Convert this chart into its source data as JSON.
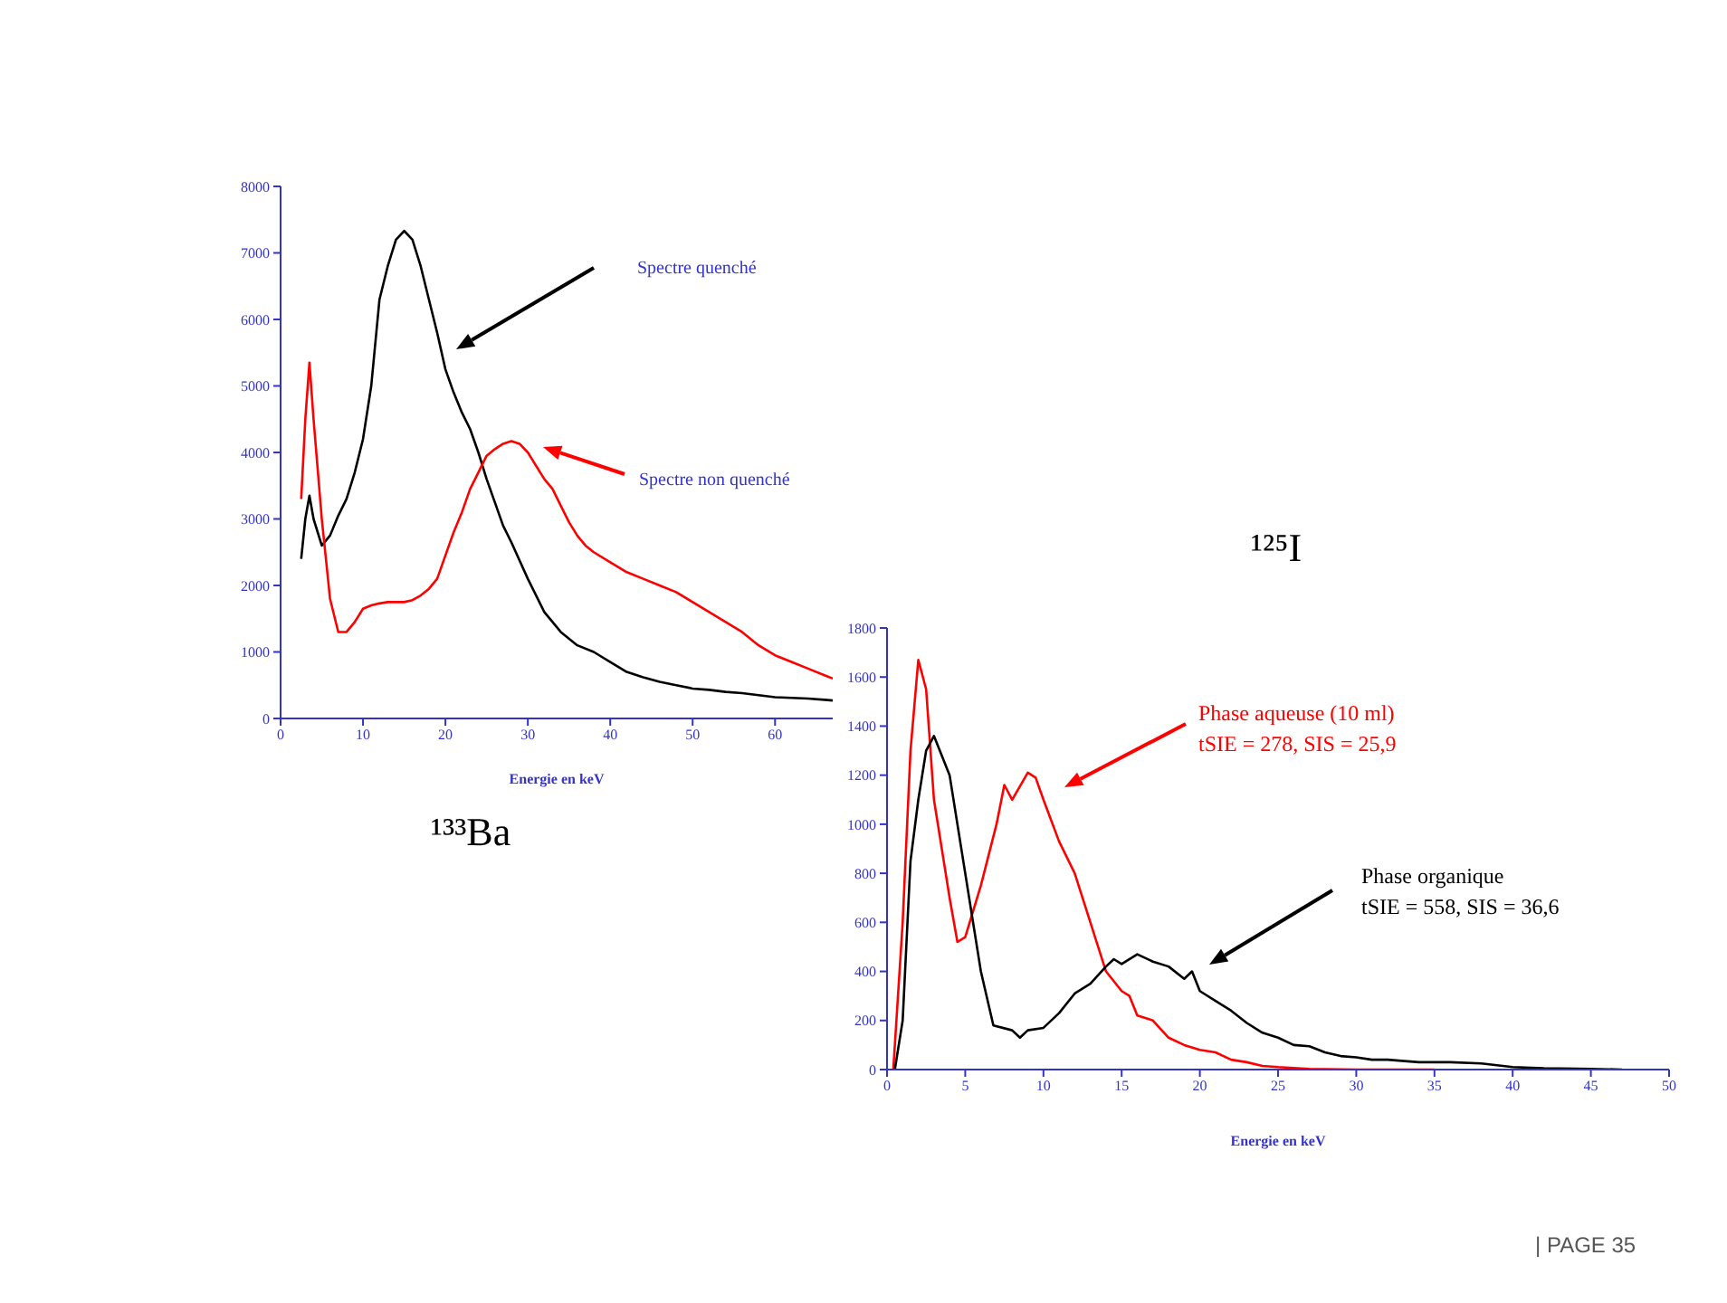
{
  "chart_data": [
    {
      "type": "line",
      "title": "¹³³Ba",
      "xlabel": "Energie en keV",
      "xlim": [
        0,
        67
      ],
      "xticks": [
        0,
        10,
        20,
        30,
        40,
        50,
        60
      ],
      "ylim": [
        0,
        8000
      ],
      "yticks": [
        0,
        1000,
        2000,
        3000,
        4000,
        5000,
        6000,
        7000,
        8000
      ],
      "grid": false,
      "legend": false,
      "marker": "none",
      "line_style": "solid",
      "series": [
        {
          "color": "#000000",
          "x": [
            2.5,
            3,
            3.5,
            4,
            5,
            6,
            7,
            8,
            9,
            10,
            11,
            12,
            13,
            14,
            15,
            16,
            17,
            18,
            19,
            20,
            21,
            22,
            23,
            24,
            25,
            26,
            27,
            28,
            30,
            32,
            34,
            36,
            38,
            40,
            42,
            44,
            46,
            48,
            50,
            52,
            54,
            56,
            58,
            60,
            62,
            64,
            66,
            67
          ],
          "values": [
            2400,
            3000,
            3350,
            3000,
            2600,
            2750,
            3050,
            3300,
            3700,
            4200,
            5000,
            6300,
            6800,
            7200,
            7330,
            7200,
            6800,
            6300,
            5800,
            5250,
            4900,
            4600,
            4350,
            4000,
            3600,
            3250,
            2900,
            2650,
            2100,
            1600,
            1300,
            1100,
            1000,
            850,
            700,
            620,
            550,
            500,
            450,
            430,
            400,
            380,
            350,
            320,
            310,
            300,
            280,
            270
          ]
        },
        {
          "color": "#ff0000",
          "x": [
            2.5,
            3,
            3.5,
            4,
            5,
            6,
            7,
            8,
            9,
            10,
            11,
            12,
            13,
            14,
            15,
            16,
            17,
            18,
            19,
            20,
            21,
            22,
            23,
            24,
            25,
            26,
            27,
            28,
            29,
            30,
            31,
            32,
            33,
            34,
            35,
            36,
            37,
            38,
            40,
            42,
            44,
            46,
            48,
            50,
            52,
            54,
            56,
            58,
            60,
            62,
            64,
            66,
            67
          ],
          "values": [
            3300,
            4500,
            5350,
            4500,
            3000,
            1800,
            1300,
            1300,
            1450,
            1650,
            1700,
            1730,
            1750,
            1750,
            1750,
            1780,
            1850,
            1950,
            2100,
            2450,
            2800,
            3100,
            3450,
            3700,
            3950,
            4050,
            4130,
            4170,
            4130,
            4000,
            3800,
            3600,
            3450,
            3200,
            2950,
            2750,
            2600,
            2500,
            2350,
            2200,
            2100,
            2000,
            1900,
            1750,
            1600,
            1450,
            1300,
            1100,
            950,
            850,
            750,
            650,
            600
          ]
        }
      ],
      "annotations": [
        "Spectre quenché",
        "Spectre non quenché"
      ]
    },
    {
      "type": "line",
      "title": "¹²⁵I",
      "xlabel": "Energie en keV",
      "xlim": [
        0,
        50
      ],
      "xticks": [
        0,
        5,
        10,
        15,
        20,
        25,
        30,
        35,
        40,
        45,
        50
      ],
      "ylim": [
        0,
        1800
      ],
      "yticks": [
        0,
        200,
        400,
        600,
        800,
        1000,
        1200,
        1400,
        1600,
        1800
      ],
      "grid": false,
      "legend": false,
      "marker": "none",
      "line_style": "solid",
      "series": [
        {
          "name": "Phase aqueuse (10 ml)",
          "color": "#ff0000",
          "x": [
            0.4,
            1,
            1.5,
            2,
            2.5,
            3,
            4,
            4.5,
            5,
            6,
            7,
            7.5,
            8,
            9,
            9.5,
            10,
            11,
            12,
            13,
            14,
            15,
            15.5,
            16,
            17,
            18,
            19,
            20,
            21,
            22,
            23,
            24,
            25,
            27,
            30,
            35
          ],
          "values": [
            0,
            600,
            1300,
            1670,
            1550,
            1100,
            700,
            520,
            540,
            750,
            1000,
            1160,
            1100,
            1210,
            1190,
            1100,
            930,
            800,
            600,
            400,
            320,
            300,
            220,
            200,
            130,
            100,
            80,
            70,
            40,
            30,
            15,
            10,
            3,
            0,
            0
          ]
        },
        {
          "name": "Phase organique",
          "color": "#000000",
          "x": [
            0.5,
            1,
            1.5,
            2,
            2.5,
            3,
            4,
            5,
            6,
            6.8,
            8,
            8.5,
            9,
            10,
            11,
            12,
            13,
            14,
            14.5,
            15,
            16,
            17,
            18,
            19,
            19.5,
            20,
            21,
            22,
            23,
            24,
            25,
            26,
            27,
            28,
            29,
            30,
            31,
            32,
            34,
            36,
            38,
            40,
            42,
            45,
            47
          ],
          "values": [
            0,
            200,
            850,
            1100,
            1300,
            1360,
            1200,
            800,
            400,
            180,
            160,
            130,
            160,
            170,
            230,
            310,
            350,
            420,
            450,
            430,
            470,
            440,
            420,
            370,
            400,
            320,
            280,
            240,
            190,
            150,
            130,
            100,
            95,
            70,
            55,
            50,
            40,
            40,
            30,
            30,
            25,
            10,
            5,
            3,
            0
          ]
        }
      ],
      "annotations": [
        "tSIE = 278, SIS = 25,9",
        "tSIE = 558, SIS = 36,6",
        "| PAGE 35"
      ]
    }
  ]
}
